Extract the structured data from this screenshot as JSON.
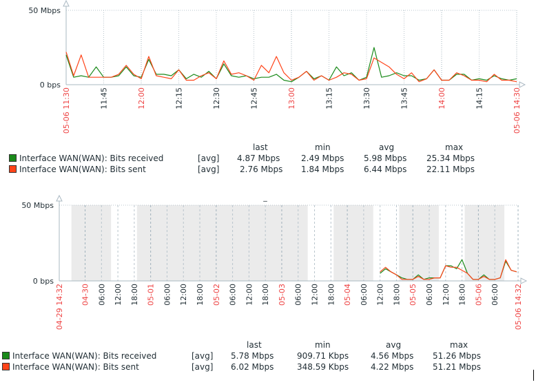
{
  "colors": {
    "received": "#1a8a1a",
    "sent": "#ff4419",
    "axis": "#aab8c2",
    "band": "#ebebeb",
    "date_label": "#e44",
    "text": "#1f2c33"
  },
  "chart_data": [
    {
      "type": "line",
      "title": "",
      "ylabel_ticks": [
        "50 Mbps",
        "0 bps"
      ],
      "ylim": [
        0,
        50
      ],
      "yunit": "Mbps",
      "xlim": [
        "05-06 11:30",
        "05-06 14:30"
      ],
      "grid": true,
      "xticks": [
        {
          "t": "05-06 11:30",
          "label": "05-06 11:30",
          "major": true
        },
        {
          "t": "05-06 11:45",
          "label": "11:45"
        },
        {
          "t": "05-06 12:00",
          "label": "12:00",
          "major": true
        },
        {
          "t": "05-06 12:15",
          "label": "12:15"
        },
        {
          "t": "05-06 12:30",
          "label": "12:30"
        },
        {
          "t": "05-06 12:45",
          "label": "12:45"
        },
        {
          "t": "05-06 13:00",
          "label": "13:00",
          "major": true
        },
        {
          "t": "05-06 13:15",
          "label": "13:15"
        },
        {
          "t": "05-06 13:30",
          "label": "13:30"
        },
        {
          "t": "05-06 13:45",
          "label": "13:45"
        },
        {
          "t": "05-06 14:00",
          "label": "14:00",
          "major": true
        },
        {
          "t": "05-06 14:15",
          "label": "14:15"
        },
        {
          "t": "05-06 14:30",
          "label": "05-06 14:30",
          "major": true
        }
      ],
      "bands": [],
      "x_start": "05-06 11:30",
      "x_step_minutes": 3,
      "series": [
        {
          "name": "Interface WAN(WAN): Bits received",
          "color": "#1a8a1a",
          "values": [
            20,
            5,
            6,
            5,
            12,
            5,
            5,
            6,
            12,
            6,
            5,
            17,
            7,
            7,
            6,
            10,
            4,
            7,
            5,
            9,
            4,
            14,
            6,
            5,
            6,
            4,
            5,
            5,
            7,
            3,
            2,
            5,
            9,
            4,
            6,
            3,
            12,
            6,
            8,
            3,
            5,
            25,
            5,
            6,
            8,
            6,
            6,
            3,
            4,
            10,
            3,
            3,
            7,
            7,
            3,
            4,
            3,
            6,
            4,
            3,
            4
          ]
        },
        {
          "name": "Interface WAN(WAN): Bits sent",
          "color": "#ff4419",
          "values": [
            22,
            6,
            20,
            5,
            5,
            5,
            5,
            7,
            13,
            7,
            4,
            19,
            6,
            5,
            4,
            10,
            3,
            3,
            6,
            8,
            4,
            16,
            7,
            8,
            6,
            3,
            13,
            8,
            19,
            8,
            3,
            5,
            9,
            3,
            6,
            3,
            5,
            8,
            7,
            3,
            4,
            18,
            15,
            12,
            7,
            4,
            8,
            2,
            4,
            10,
            3,
            3,
            8,
            6,
            3,
            3,
            2,
            7,
            3,
            3,
            2
          ]
        }
      ],
      "legend": {
        "headers": [
          "last",
          "min",
          "avg",
          "max"
        ],
        "rows": [
          {
            "name": "Interface WAN(WAN): Bits received",
            "func": "[avg]",
            "last": "4.87 Mbps",
            "min": "2.49 Mbps",
            "avg": "5.98 Mbps",
            "max": "25.34 Mbps",
            "color": "#1a8a1a"
          },
          {
            "name": "Interface WAN(WAN): Bits sent",
            "func": "[avg]",
            "last": "2.76 Mbps",
            "min": "1.84 Mbps",
            "avg": "6.44 Mbps",
            "max": "22.11 Mbps",
            "color": "#ff4419"
          }
        ]
      }
    },
    {
      "type": "line",
      "title": "_",
      "ylabel_ticks": [
        "50 Mbps",
        "0 bps"
      ],
      "ylim": [
        0,
        50
      ],
      "yunit": "Mbps",
      "xlim": [
        "04-29 14:32",
        "05-06 14:32"
      ],
      "grid": true,
      "xticks": [
        {
          "t": "04-29 14:32",
          "label": "04-29 14:32",
          "major": true
        },
        {
          "t": "04-30 00:00",
          "label": "04-30",
          "major": true
        },
        {
          "t": "04-30 06:00",
          "label": "06:00"
        },
        {
          "t": "04-30 12:00",
          "label": "12:00"
        },
        {
          "t": "04-30 18:00",
          "label": "18:00"
        },
        {
          "t": "05-01 00:00",
          "label": "05-01",
          "major": true
        },
        {
          "t": "05-01 06:00",
          "label": "06:00"
        },
        {
          "t": "05-01 12:00",
          "label": "12:00"
        },
        {
          "t": "05-01 18:00",
          "label": "18:00"
        },
        {
          "t": "05-02 00:00",
          "label": "05-02",
          "major": true
        },
        {
          "t": "05-02 06:00",
          "label": "06:00"
        },
        {
          "t": "05-02 12:00",
          "label": "12:00"
        },
        {
          "t": "05-02 18:00",
          "label": "18:00"
        },
        {
          "t": "05-03 00:00",
          "label": "05-03",
          "major": true
        },
        {
          "t": "05-03 06:00",
          "label": "06:00"
        },
        {
          "t": "05-03 12:00",
          "label": "12:00"
        },
        {
          "t": "05-03 18:00",
          "label": "18:00"
        },
        {
          "t": "05-04 00:00",
          "label": "05-04",
          "major": true
        },
        {
          "t": "05-04 06:00",
          "label": "06:00"
        },
        {
          "t": "05-04 12:00",
          "label": "12:00"
        },
        {
          "t": "05-04 18:00",
          "label": "18:00"
        },
        {
          "t": "05-05 00:00",
          "label": "05-05",
          "major": true
        },
        {
          "t": "05-05 06:00",
          "label": "06:00"
        },
        {
          "t": "05-05 12:00",
          "label": "12:00"
        },
        {
          "t": "05-05 18:00",
          "label": "18:00"
        },
        {
          "t": "05-06 00:00",
          "label": "05-06",
          "major": true
        },
        {
          "t": "05-06 06:00",
          "label": "06:00"
        },
        {
          "t": "05-06 14:32",
          "label": "05-06 14:32",
          "major": true
        }
      ],
      "bands": [
        [
          "04-29 19:00",
          "04-30 09:30"
        ],
        [
          "04-30 19:00",
          "05-03 09:30"
        ],
        [
          "05-03 19:00",
          "05-04 09:30"
        ],
        [
          "05-04 19:00",
          "05-05 09:30"
        ],
        [
          "05-05 19:00",
          "05-06 09:30"
        ]
      ],
      "x_start": "05-04 12:00",
      "x_step_minutes": 120,
      "series": [
        {
          "name": "Interface WAN(WAN): Bits received",
          "color": "#1a8a1a",
          "values": [
            5,
            8,
            6,
            4,
            2,
            1,
            1,
            4,
            1,
            2,
            2,
            2,
            10,
            10,
            8,
            14,
            5,
            1,
            1,
            4,
            1,
            1,
            2,
            13,
            7,
            6
          ]
        },
        {
          "name": "Interface WAN(WAN): Bits sent",
          "color": "#ff4419",
          "values": [
            6,
            9,
            6,
            4,
            1,
            1,
            1,
            3,
            1,
            1,
            2,
            2,
            10,
            9,
            9,
            7,
            5,
            1,
            1,
            3,
            1,
            1,
            2,
            14,
            7,
            6
          ]
        }
      ],
      "legend": {
        "headers": [
          "last",
          "min",
          "avg",
          "max"
        ],
        "rows": [
          {
            "name": "Interface WAN(WAN): Bits received",
            "func": "[avg]",
            "last": "5.78 Mbps",
            "min": "909.71 Kbps",
            "avg": "4.56 Mbps",
            "max": "51.26 Mbps",
            "color": "#1a8a1a"
          },
          {
            "name": "Interface WAN(WAN): Bits sent",
            "func": "[avg]",
            "last": "6.02 Mbps",
            "min": "348.59 Kbps",
            "avg": "4.22 Mbps",
            "max": "51.21 Mbps",
            "color": "#ff4419"
          }
        ]
      }
    }
  ]
}
